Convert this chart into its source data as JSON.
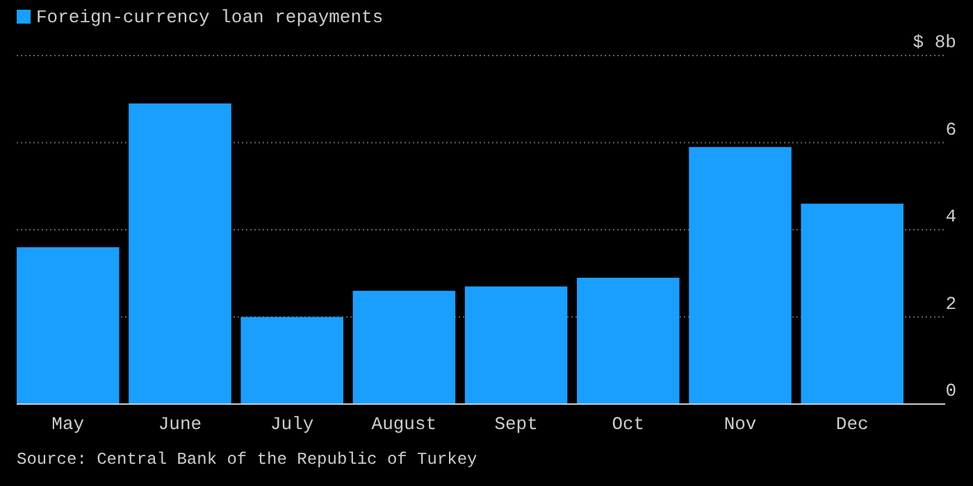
{
  "chart_data": {
    "type": "bar",
    "categories": [
      "May",
      "June",
      "July",
      "August",
      "Sept",
      "Oct",
      "Nov",
      "Dec"
    ],
    "series": [
      {
        "name": "Foreign-currency loan repayments",
        "color": "#1a9fff",
        "values": [
          3.6,
          6.9,
          2.0,
          2.6,
          2.7,
          2.9,
          5.9,
          4.6
        ]
      }
    ],
    "ylim": [
      0,
      8
    ],
    "yticks": [
      0,
      2,
      4,
      6,
      {
        "value": 8,
        "label": "$ 8b"
      }
    ],
    "grid": "y",
    "legend": "top left",
    "annotations": [
      "Source: Central Bank of the Republic of Turkey"
    ]
  }
}
